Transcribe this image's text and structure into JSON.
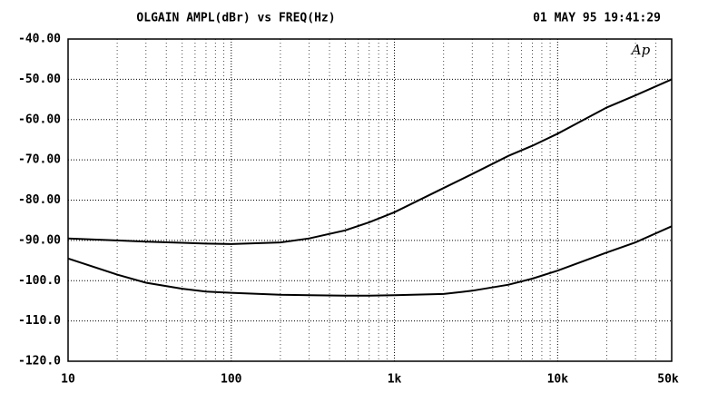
{
  "chart_data": {
    "type": "line",
    "title": "OLGAIN AMPL(dBr) vs FREQ(Hz)",
    "timestamp": "01 MAY 95 19:41:29",
    "logo": "Ap",
    "x": [
      10,
      20,
      30,
      50,
      70,
      100,
      200,
      300,
      500,
      700,
      1000,
      2000,
      3000,
      5000,
      7000,
      10000,
      20000,
      30000,
      50000
    ],
    "series": [
      {
        "color": "#000000",
        "values": [
          -89.5,
          -90,
          -90.3,
          -90.6,
          -90.8,
          -90.9,
          -90.5,
          -89.5,
          -87.5,
          -85.5,
          -83,
          -77,
          -73.5,
          -69,
          -66.5,
          -63.5,
          -57,
          -54,
          -50
        ]
      },
      {
        "color": "#000000",
        "values": [
          -94.5,
          -98.5,
          -100.5,
          -102,
          -102.7,
          -103,
          -103.5,
          -103.6,
          -103.7,
          -103.7,
          -103.6,
          -103.3,
          -102.5,
          -101,
          -99.5,
          -97.5,
          -93,
          -90.5,
          -86.5
        ]
      }
    ],
    "xlim": [
      10,
      50000
    ],
    "xticks": [
      10,
      100,
      {
        "value": 1000,
        "label": "1k"
      },
      {
        "value": 10000,
        "label": "10k"
      },
      {
        "value": 50000,
        "label": "50k"
      }
    ],
    "xscale": "log",
    "ylim": [
      -120,
      -40
    ],
    "yticks": [
      {
        "value": -120,
        "label": "-120.0"
      },
      {
        "value": -110,
        "label": "-110.0"
      },
      {
        "value": -100,
        "label": "-100.0"
      },
      {
        "value": -90,
        "label": "-90.00"
      },
      {
        "value": -80,
        "label": "-80.00"
      },
      {
        "value": -70,
        "label": "-70.00"
      },
      {
        "value": -60,
        "label": "-60.00"
      },
      {
        "value": -50,
        "label": "-50.00"
      },
      {
        "value": -40,
        "label": "-40.00"
      }
    ],
    "grid": true
  }
}
